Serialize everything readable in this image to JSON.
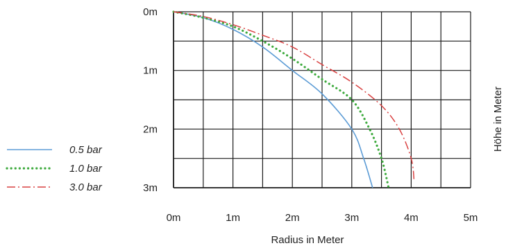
{
  "chart_data": {
    "type": "line",
    "xlabel": "Radius in Meter",
    "ylabel": "Höhe in Meter",
    "x_ticks": [
      {
        "value": 0,
        "label": "0m"
      },
      {
        "value": 1,
        "label": "1m"
      },
      {
        "value": 2,
        "label": "2m"
      },
      {
        "value": 3,
        "label": "3m"
      },
      {
        "value": 4,
        "label": "4m"
      },
      {
        "value": 5,
        "label": "5m"
      }
    ],
    "y_ticks": [
      {
        "value": 0,
        "label": "0m"
      },
      {
        "value": 1,
        "label": "1m"
      },
      {
        "value": 2,
        "label": "2m"
      },
      {
        "value": 3,
        "label": "3m"
      }
    ],
    "xlim": [
      0,
      5
    ],
    "ylim": [
      0,
      3
    ],
    "y_inverted": true,
    "grid_step": 0.5,
    "grid": true,
    "legend_position": "left",
    "series": [
      {
        "name": "0.5 bar",
        "color": "#5b9bd5",
        "style": "solid",
        "points": [
          [
            0,
            0
          ],
          [
            0.5,
            0.1
          ],
          [
            1,
            0.3
          ],
          [
            1.5,
            0.6
          ],
          [
            2,
            1.0
          ],
          [
            2.5,
            1.4
          ],
          [
            3,
            2.0
          ],
          [
            3.2,
            2.5
          ],
          [
            3.35,
            3.0
          ]
        ]
      },
      {
        "name": "1.0 bar",
        "color": "#3daa3d",
        "style": "dotted",
        "points": [
          [
            0,
            0
          ],
          [
            0.5,
            0.1
          ],
          [
            1,
            0.25
          ],
          [
            1.5,
            0.5
          ],
          [
            2,
            0.8
          ],
          [
            2.5,
            1.15
          ],
          [
            3,
            1.5
          ],
          [
            3.3,
            2.0
          ],
          [
            3.5,
            2.5
          ],
          [
            3.62,
            3.0
          ]
        ]
      },
      {
        "name": "3.0 bar",
        "color": "#d94040",
        "style": "dashdot",
        "points": [
          [
            0,
            0
          ],
          [
            0.5,
            0.08
          ],
          [
            1,
            0.22
          ],
          [
            1.5,
            0.4
          ],
          [
            2,
            0.6
          ],
          [
            2.5,
            0.9
          ],
          [
            3,
            1.2
          ],
          [
            3.5,
            1.6
          ],
          [
            3.8,
            2.0
          ],
          [
            4.0,
            2.5
          ],
          [
            4.05,
            2.9
          ]
        ]
      }
    ]
  }
}
